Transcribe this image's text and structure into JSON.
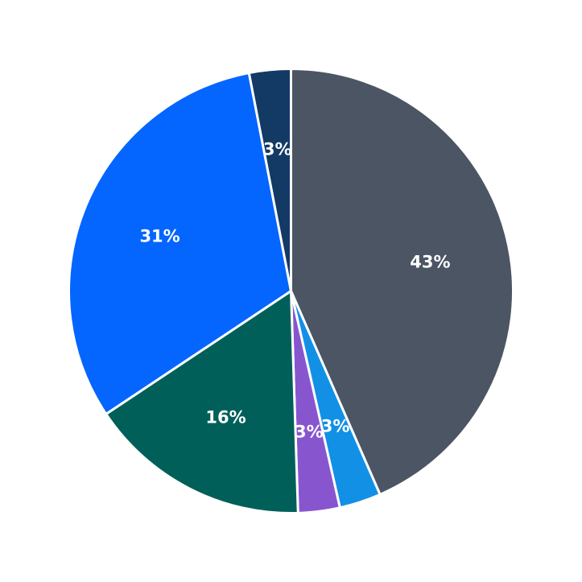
{
  "chart_data": {
    "type": "pie",
    "start_angle_deg": 90,
    "direction": "clockwise",
    "slices": [
      {
        "value": 43,
        "label": "43%",
        "color": "#4b5563"
      },
      {
        "value": 3,
        "label": "3%",
        "color": "#1290e6"
      },
      {
        "value": 3,
        "label": "3%",
        "color": "#8756cf"
      },
      {
        "value": 16,
        "label": "16%",
        "color": "#006059"
      },
      {
        "value": 31,
        "label": "31%",
        "color": "#0565ff"
      },
      {
        "value": 3,
        "label": "3%",
        "color": "#133a65"
      }
    ]
  }
}
